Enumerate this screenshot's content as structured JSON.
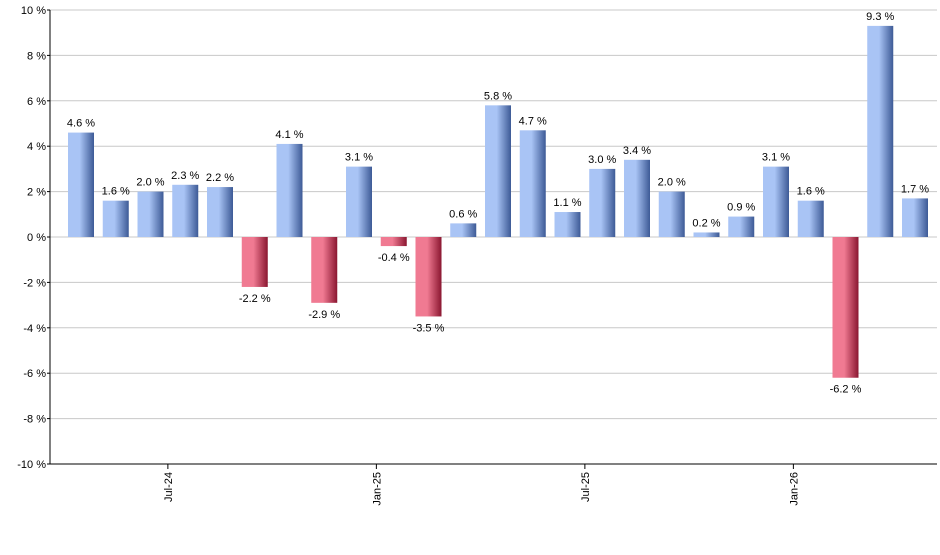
{
  "chart_data": {
    "type": "bar",
    "title": "",
    "xlabel": "",
    "ylabel": "",
    "ylim": [
      -10,
      10
    ],
    "y_ticks": [
      {
        "value": 10,
        "label": "10 %"
      },
      {
        "value": 8,
        "label": "8 %"
      },
      {
        "value": 6,
        "label": "6 %"
      },
      {
        "value": 4,
        "label": "4 %"
      },
      {
        "value": 2,
        "label": "2 %"
      },
      {
        "value": 0,
        "label": "0 %"
      },
      {
        "value": -2,
        "label": "-2 %"
      },
      {
        "value": -4,
        "label": "-4 %"
      },
      {
        "value": -6,
        "label": "-6 %"
      },
      {
        "value": -8,
        "label": "-8 %"
      },
      {
        "value": -10,
        "label": "-10 %"
      }
    ],
    "x_ticks": [
      {
        "index": 2.5,
        "label": "Jul-24"
      },
      {
        "index": 8.5,
        "label": "Jan-25"
      },
      {
        "index": 14.5,
        "label": "Jul-25"
      },
      {
        "index": 20.5,
        "label": "Jan-26"
      }
    ],
    "values": [
      4.6,
      1.6,
      2.0,
      2.3,
      2.2,
      -2.2,
      4.1,
      -2.9,
      3.1,
      -0.4,
      -3.5,
      0.6,
      5.8,
      4.7,
      1.1,
      3.0,
      3.4,
      2.0,
      0.2,
      0.9,
      3.1,
      1.6,
      -6.2,
      9.3,
      1.7
    ],
    "data_labels": [
      "4.6 %",
      "1.6 %",
      "2.0 %",
      "2.3 %",
      "2.2 %",
      "-2.2 %",
      "4.1 %",
      "-2.9 %",
      "3.1 %",
      "-0.4 %",
      "-3.5 %",
      "0.6 %",
      "5.8 %",
      "4.7 %",
      "1.1 %",
      "3.0 %",
      "3.4 %",
      "2.0 %",
      "0.2 %",
      "0.9 %",
      "3.1 %",
      "1.6 %",
      "-6.2 %",
      "9.3 %",
      "1.7 %"
    ],
    "grid": true,
    "legend": "none",
    "colors": {
      "positive_light": "#a9c4f5",
      "positive_dark": "#3d5a96",
      "negative_light": "#f07a92",
      "negative_dark": "#8a1630",
      "grid": "#c8c8c8",
      "axis": "#000000"
    }
  }
}
